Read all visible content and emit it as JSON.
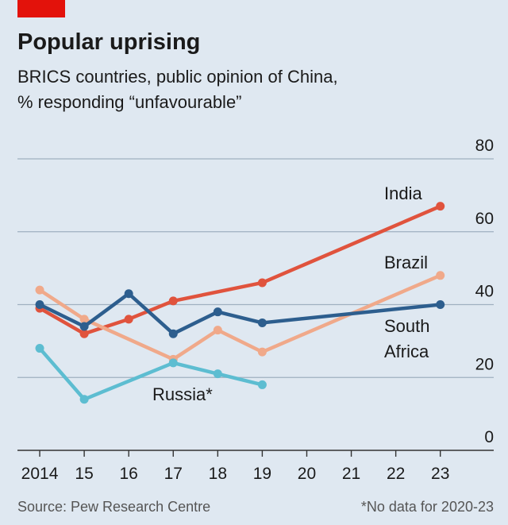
{
  "chart_data": {
    "type": "line",
    "title": "Popular uprising",
    "subtitle": [
      "BRICS countries, public opinion of China,",
      "% responding “unfavourable”"
    ],
    "xlim": [
      2013.5,
      2024.2
    ],
    "xticks": [
      2014,
      {
        "value": 2015,
        "label": "15"
      },
      {
        "value": 2016,
        "label": "16"
      },
      {
        "value": 2017,
        "label": "17"
      },
      {
        "value": 2018,
        "label": "18"
      },
      {
        "value": 2019,
        "label": "19"
      },
      {
        "value": 2020,
        "label": "20"
      },
      {
        "value": 2021,
        "label": "21"
      },
      {
        "value": 2022,
        "label": "22"
      },
      {
        "value": 2023,
        "label": "23"
      }
    ],
    "ylim": [
      0,
      80
    ],
    "yticks": [
      0,
      20,
      40,
      60,
      80
    ],
    "grid": true,
    "series": [
      {
        "name": "India",
        "color": "#e0533d",
        "x": [
          2014,
          2015,
          2016,
          2017,
          2019,
          2023
        ],
        "values": [
          39,
          32,
          36,
          41,
          46,
          67
        ]
      },
      {
        "name": "Brazil",
        "color": "#f0a98a",
        "x": [
          2014,
          2015,
          2017,
          2018,
          2019,
          2023
        ],
        "values": [
          44,
          36,
          25,
          33,
          27,
          48
        ]
      },
      {
        "name": "South Africa",
        "color": "#2d5e8e",
        "x": [
          2014,
          2015,
          2016,
          2017,
          2018,
          2019,
          2023
        ],
        "values": [
          40,
          34,
          43,
          32,
          38,
          35,
          40
        ]
      },
      {
        "name": "Russia*",
        "color": "#5dbdd1",
        "x": [
          2014,
          2015,
          2017,
          2018,
          2019
        ],
        "values": [
          28,
          14,
          24,
          21,
          18
        ]
      }
    ],
    "source": "Source: Pew Research Centre",
    "note": "*No data for 2020-23"
  }
}
